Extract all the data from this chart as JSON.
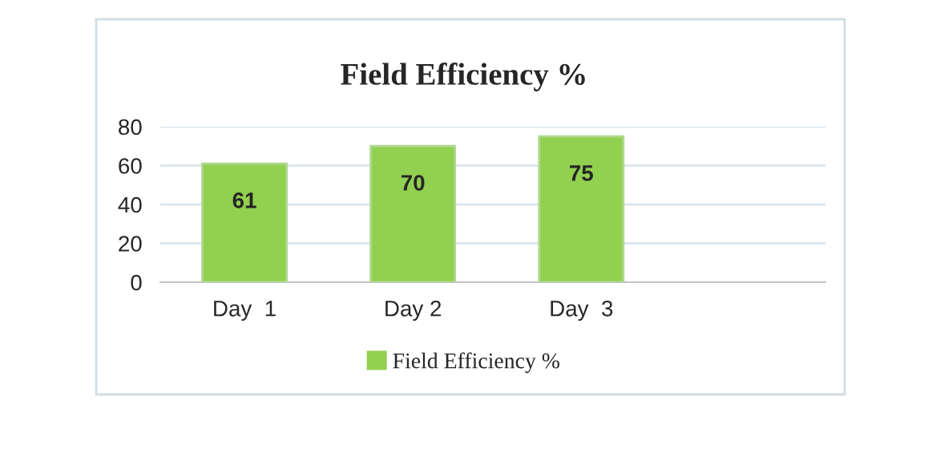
{
  "chart_data": {
    "type": "bar",
    "title": "Field Efficiency %",
    "categories": [
      "Day  1",
      "Day 2",
      "Day  3"
    ],
    "series": [
      {
        "name": "Field Efficiency %",
        "color": "#92d050",
        "values": [
          61,
          70,
          75
        ]
      }
    ],
    "ylim": [
      0,
      80
    ],
    "yticks": [
      0,
      20,
      40,
      60,
      80
    ],
    "grid": "y",
    "legend": "bottom",
    "data_labels": true
  }
}
